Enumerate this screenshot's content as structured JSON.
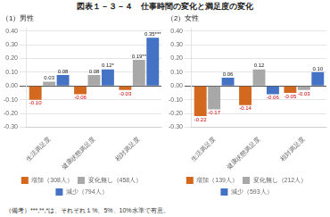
{
  "title": "図表１－３－４　仕事時間の変化と満足度の変化",
  "annotations": [
    "（備考）***,**,*は、それぞれ１%、5%、10%水準で有意。"
  ],
  "chart_data": [
    {
      "type": "bar",
      "subtitle": "（1）男性",
      "categories": [
        "生活満足度",
        "健康状態満足度",
        "相対満足度"
      ],
      "series": [
        {
          "name": "増加（308人）",
          "color": "#D2691E",
          "values": [
            -0.1,
            -0.06,
            -0.03
          ],
          "value_labels": [
            "-0.10",
            "-0.06",
            "-0.03"
          ]
        },
        {
          "name": "変化無し（458人）",
          "color": "#A8A8A8",
          "values": [
            0.03,
            0.08,
            0.19
          ],
          "value_labels": [
            "0.03",
            "0.08",
            "0.19**"
          ]
        },
        {
          "name": "減少（794人）",
          "color": "#4472C4",
          "values": [
            0.08,
            0.12,
            0.35
          ],
          "value_labels": [
            "0.08",
            "0.12*",
            "0.35***"
          ]
        }
      ],
      "ylim": [
        -0.3,
        0.42
      ],
      "yticks": [
        {
          "value": -0.3,
          "label": "-0.30"
        },
        {
          "value": -0.2,
          "label": "-0.20"
        },
        {
          "value": -0.1,
          "label": "-0.10"
        },
        {
          "value": 0.0,
          "label": "0.00"
        },
        {
          "value": 0.1,
          "label": "0.10"
        },
        {
          "value": 0.2,
          "label": "0.20"
        },
        {
          "value": 0.3,
          "label": "0.30"
        },
        {
          "value": 0.4,
          "label": "0.40"
        }
      ],
      "grid": true,
      "data_labels": true,
      "legend": "bottom"
    },
    {
      "type": "bar",
      "subtitle": "（2）女性",
      "categories": [
        "生活満足度",
        "健康状態満足度",
        "相対満足度"
      ],
      "series": [
        {
          "name": "増加（139人）",
          "color": "#D2691E",
          "values": [
            -0.22,
            -0.14,
            -0.05
          ],
          "value_labels": [
            "-0.22",
            "-0.14",
            "-0.05"
          ]
        },
        {
          "name": "変化無し（212人）",
          "color": "#A8A8A8",
          "values": [
            -0.17,
            0.12,
            -0.03
          ],
          "value_labels": [
            "-0.17",
            "0.12",
            "-0.03"
          ]
        },
        {
          "name": "減少（593人）",
          "color": "#4472C4",
          "values": [
            0.06,
            -0.06,
            0.1
          ],
          "value_labels": [
            "0.06",
            "-0.06",
            "0.10"
          ]
        }
      ],
      "ylim": [
        -0.3,
        0.42
      ],
      "yticks": [
        {
          "value": -0.3,
          "label": "-0.30"
        },
        {
          "value": -0.2,
          "label": "-0.20"
        },
        {
          "value": -0.1,
          "label": "-0.10"
        },
        {
          "value": 0.0,
          "label": "0.00"
        },
        {
          "value": 0.1,
          "label": "0.10"
        },
        {
          "value": 0.2,
          "label": "0.20"
        },
        {
          "value": 0.3,
          "label": "0.30"
        },
        {
          "value": 0.4,
          "label": "0.40"
        }
      ],
      "grid": true,
      "data_labels": true,
      "legend": "bottom"
    }
  ]
}
